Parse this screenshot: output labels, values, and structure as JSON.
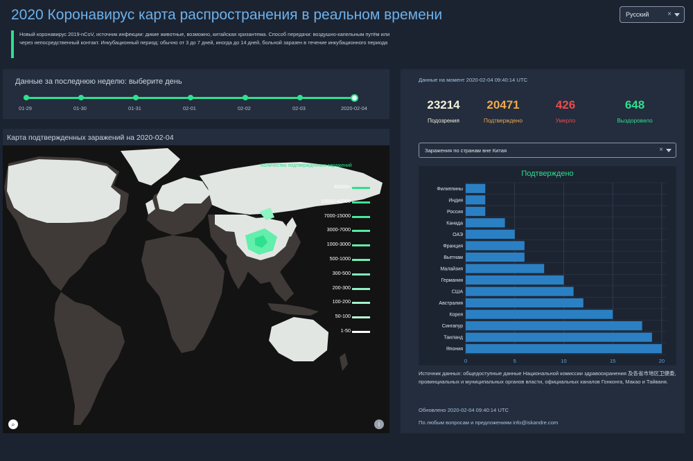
{
  "header": {
    "title": "2020 Коронавирус карта распространения в реальном времени",
    "language": "Русский",
    "intro": "Новый коронавирус 2019-nCoV, источник инфекции: дикие животные, возможно, китайская хризантема. Способ передачи: воздушно-капельным путём или через непосредственный контакт. Инкубационный период: обычно от 3 до 7 дней, иногда до 14 дней, больной заразен в течение инкубационного периода"
  },
  "week": {
    "label": "Данные за последнюю неделю: выберите день",
    "days": [
      "01-29",
      "01-30",
      "01-31",
      "02-01",
      "02-02",
      "02-03",
      "2020-02-04"
    ],
    "selected_index": 6
  },
  "map": {
    "title": "Карта подтвержденных заражений на 2020-02-04",
    "legend_title": "Количество подтвержденных заражений",
    "legend": [
      "40000+",
      "15000-40000",
      "7000-15000",
      "3000-7000",
      "1000-3000",
      "500-1000",
      "300-500",
      "200-300",
      "100-200",
      "50-100",
      "1-50"
    ],
    "legend_colors": [
      "#2ee08f",
      "#3be596",
      "#48e89d",
      "#55eba4",
      "#62eeab",
      "#70f0b2",
      "#7ef2b9",
      "#8ef4c2",
      "#a3f6cd",
      "#bef8dc",
      "#ffffff"
    ],
    "icons": {
      "left": "search-icon",
      "right": "info-icon"
    }
  },
  "stats": {
    "as_of": "Данные на момент 2020-02-04 09:40:14 UTC",
    "items": [
      {
        "value": "23214",
        "caption": "Подозрения",
        "color": "#f4f0d8"
      },
      {
        "value": "20471",
        "caption": "Подтверждено",
        "color": "#f3a94c"
      },
      {
        "value": "426",
        "caption": "Умерло",
        "color": "#ec4b4b"
      },
      {
        "value": "648",
        "caption": "Выздоровело",
        "color": "#2ee08f"
      }
    ]
  },
  "dropdown": {
    "value": "Заражения по странам вне Китая"
  },
  "chart_data": {
    "type": "bar",
    "orientation": "horizontal",
    "title": "Подтверждено",
    "categories": [
      "Филиппины",
      "Индия",
      "Россия",
      "Канада",
      "ОАЭ",
      "Франция",
      "Вьетнам",
      "Малайзия",
      "Германия",
      "США",
      "Австралия",
      "Корея",
      "Сингапур",
      "Таиланд",
      "Япония"
    ],
    "values": [
      2,
      2,
      2,
      4,
      5,
      6,
      6,
      8,
      10,
      11,
      12,
      15,
      18,
      19,
      20
    ],
    "xlim": [
      0,
      20.5
    ],
    "xticks": [
      "0",
      "5",
      "10",
      "15",
      "20"
    ],
    "bar_color": "#2b80c4",
    "grid": true
  },
  "footer": {
    "source": "Источник данных: общедоступные данные Национальной комиссии здравоохранения 及各省市地区卫健委, провинциальных и муниципальных органов власти, официальных каналов Гонконга, Макао и Тайваня.",
    "updated": "Обновлено 2020-02-04 09:40:14 UTC",
    "contact": "По любым вопросам и предложениям info@iskandre.com"
  }
}
